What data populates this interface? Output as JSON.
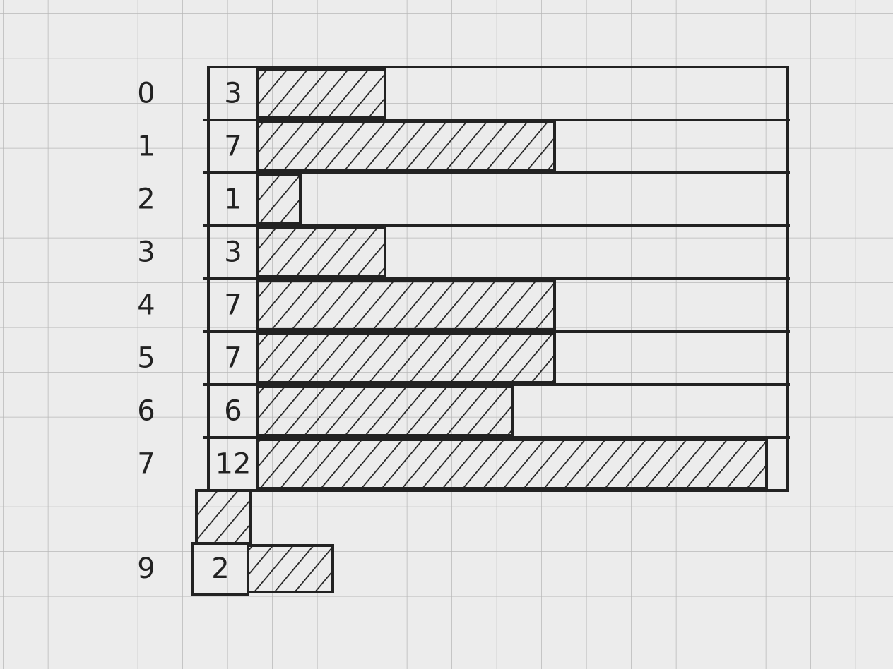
{
  "chart_data": {
    "type": "bar",
    "categories": [
      "0",
      "1",
      "2",
      "3",
      "4",
      "5",
      "6",
      "7",
      null,
      "9"
    ],
    "values": [
      3,
      7,
      1,
      3,
      7,
      7,
      6,
      12,
      null,
      2
    ],
    "color": "#222222"
  }
}
